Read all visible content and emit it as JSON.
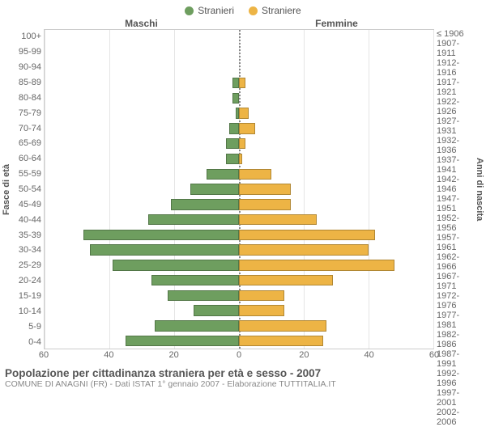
{
  "legend": [
    {
      "label": "Stranieri",
      "color": "#6e9e5f"
    },
    {
      "label": "Straniere",
      "color": "#edb445"
    }
  ],
  "headers": {
    "male": "Maschi",
    "female": "Femmine"
  },
  "axis": {
    "left": "Fasce di età",
    "right": "Anni di nascita"
  },
  "chart": {
    "type": "population-pyramid",
    "xlim": 60,
    "xticks": [
      60,
      40,
      20,
      0,
      20,
      40,
      60
    ],
    "grid_color": "#e5e5e5",
    "border_color": "#cccccc",
    "center_line_color": "#888888",
    "background_color": "#ffffff",
    "bar_colors": {
      "male": "#6e9e5f",
      "female": "#edb445"
    },
    "label_fontsize": 11,
    "tick_fontsize": 11,
    "rows": [
      {
        "age": "100+",
        "birth": "≤ 1906",
        "m": 0,
        "f": 0
      },
      {
        "age": "95-99",
        "birth": "1907-1911",
        "m": 0,
        "f": 0
      },
      {
        "age": "90-94",
        "birth": "1912-1916",
        "m": 0,
        "f": 0
      },
      {
        "age": "85-89",
        "birth": "1917-1921",
        "m": 2,
        "f": 2
      },
      {
        "age": "80-84",
        "birth": "1922-1926",
        "m": 2,
        "f": 0
      },
      {
        "age": "75-79",
        "birth": "1927-1931",
        "m": 1,
        "f": 3
      },
      {
        "age": "70-74",
        "birth": "1932-1936",
        "m": 3,
        "f": 5
      },
      {
        "age": "65-69",
        "birth": "1937-1941",
        "m": 4,
        "f": 2
      },
      {
        "age": "60-64",
        "birth": "1942-1946",
        "m": 4,
        "f": 1
      },
      {
        "age": "55-59",
        "birth": "1947-1951",
        "m": 10,
        "f": 10
      },
      {
        "age": "50-54",
        "birth": "1952-1956",
        "m": 15,
        "f": 16
      },
      {
        "age": "45-49",
        "birth": "1957-1961",
        "m": 21,
        "f": 16
      },
      {
        "age": "40-44",
        "birth": "1962-1966",
        "m": 28,
        "f": 24
      },
      {
        "age": "35-39",
        "birth": "1967-1971",
        "m": 48,
        "f": 42
      },
      {
        "age": "30-34",
        "birth": "1972-1976",
        "m": 46,
        "f": 40
      },
      {
        "age": "25-29",
        "birth": "1977-1981",
        "m": 39,
        "f": 48
      },
      {
        "age": "20-24",
        "birth": "1982-1986",
        "m": 27,
        "f": 29
      },
      {
        "age": "15-19",
        "birth": "1987-1991",
        "m": 22,
        "f": 14
      },
      {
        "age": "10-14",
        "birth": "1992-1996",
        "m": 14,
        "f": 14
      },
      {
        "age": "5-9",
        "birth": "1997-2001",
        "m": 26,
        "f": 27
      },
      {
        "age": "0-4",
        "birth": "2002-2006",
        "m": 35,
        "f": 26
      }
    ]
  },
  "footer": {
    "title": "Popolazione per cittadinanza straniera per età e sesso - 2007",
    "subtitle": "COMUNE DI ANAGNI (FR) - Dati ISTAT 1° gennaio 2007 - Elaborazione TUTTITALIA.IT"
  }
}
